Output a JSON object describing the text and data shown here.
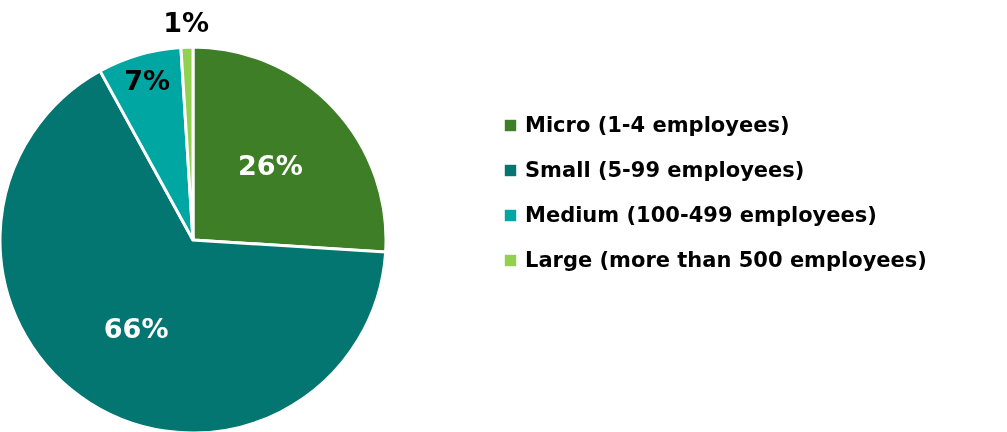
{
  "chart_data": {
    "type": "pie",
    "categories": [
      "Micro (1-4 employees)",
      "Small (5-99 employees)",
      "Medium (100-499 employees)",
      "Large (more than 500 employees)"
    ],
    "values": [
      26,
      66,
      7,
      1
    ],
    "colors": [
      "#3e7e26",
      "#037672",
      "#00a6a2",
      "#92d050"
    ],
    "value_labels": [
      "26%",
      "66%",
      "7%",
      "1%"
    ],
    "legend": "right"
  }
}
